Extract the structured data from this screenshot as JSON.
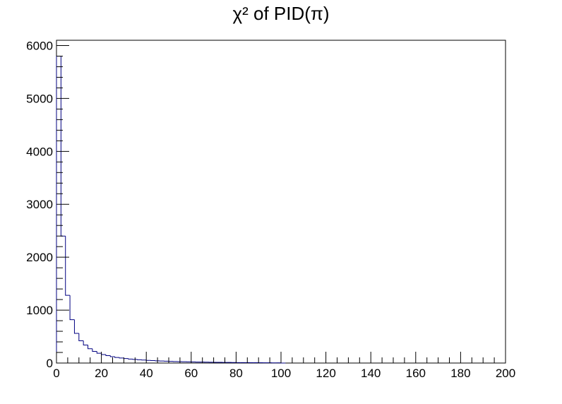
{
  "chart_data": {
    "type": "bar",
    "title": "χ² of PID(π)",
    "xlabel": "",
    "ylabel": "",
    "xlim": [
      0,
      200
    ],
    "ylim": [
      0,
      6100
    ],
    "bin_width": 2,
    "x_ticks": [
      "0",
      "20",
      "40",
      "60",
      "80",
      "100",
      "120",
      "140",
      "160",
      "180",
      "200"
    ],
    "y_ticks": [
      "0",
      "1000",
      "2000",
      "3000",
      "4000",
      "5000",
      "6000"
    ],
    "grid": false,
    "legend": "none",
    "line_color": "#000080",
    "bin_low_edges": [
      0,
      2,
      4,
      6,
      8,
      10,
      12,
      14,
      16,
      18,
      20,
      22,
      24,
      26,
      28,
      30,
      32,
      34,
      36,
      38,
      40,
      42,
      44,
      46,
      48,
      50,
      52,
      54,
      56,
      58,
      60,
      62,
      64,
      66,
      68,
      70,
      72,
      74,
      76,
      78,
      80,
      82,
      84,
      86,
      88,
      90,
      92,
      94,
      96,
      98,
      100
    ],
    "values": [
      5800,
      2400,
      1280,
      820,
      560,
      420,
      340,
      270,
      220,
      185,
      160,
      140,
      120,
      105,
      95,
      85,
      75,
      68,
      62,
      56,
      50,
      46,
      42,
      38,
      35,
      32,
      29,
      27,
      25,
      23,
      21,
      19,
      18,
      17,
      15,
      14,
      13,
      12,
      11,
      10,
      9,
      8,
      8,
      7,
      6,
      6,
      5,
      5,
      4,
      4,
      0
    ]
  }
}
